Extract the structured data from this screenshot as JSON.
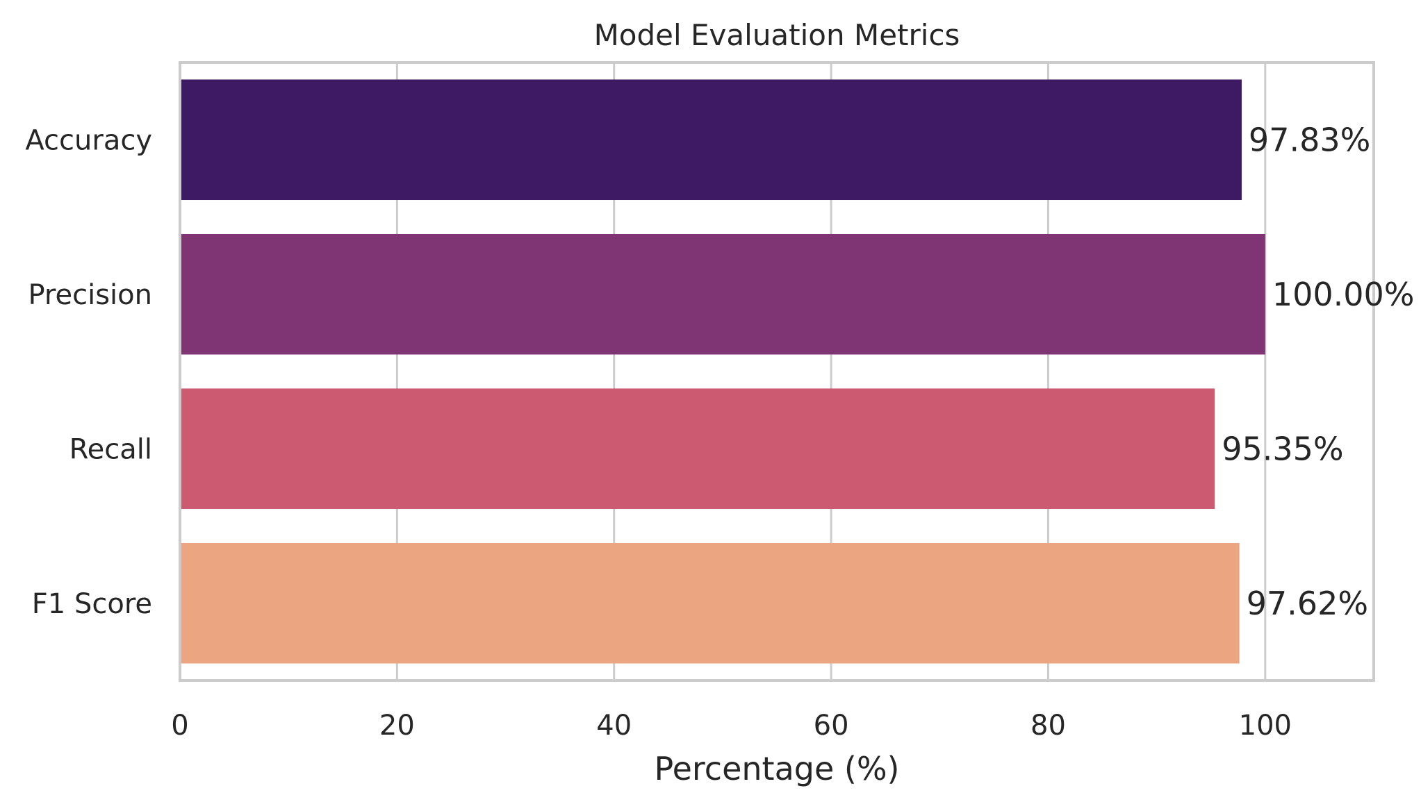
{
  "chart_data": {
    "type": "bar",
    "orientation": "horizontal",
    "title": "Model Evaluation Metrics",
    "xlabel": "Percentage (%)",
    "ylabel": "",
    "categories": [
      "Accuracy",
      "Precision",
      "Recall",
      "F1 Score"
    ],
    "values": [
      97.83,
      100.0,
      95.35,
      97.62
    ],
    "value_labels": [
      "97.83%",
      "100.00%",
      "95.35%",
      "97.62%"
    ],
    "colors": [
      "#3d1a63",
      "#7f3574",
      "#cc5b71",
      "#eca581"
    ],
    "xlim": [
      0,
      110
    ],
    "xticks": [
      0,
      20,
      40,
      60,
      80,
      100
    ],
    "xtick_labels": [
      "0",
      "20",
      "40",
      "60",
      "80",
      "100"
    ],
    "grid": true,
    "grid_color": "#cccccc",
    "text_color": "#262626"
  }
}
